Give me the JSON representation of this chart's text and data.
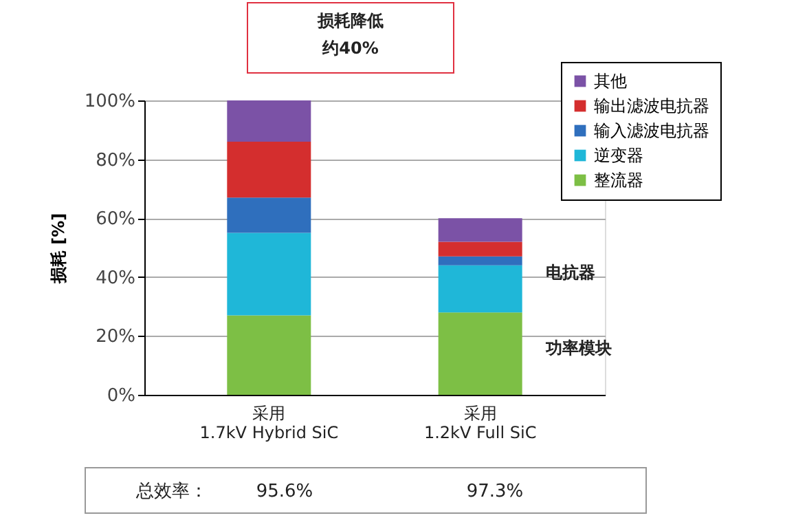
{
  "chart_data": {
    "type": "bar",
    "stacked": true,
    "categories": [
      "采用\n1.7kV Hybrid SiC",
      "采用\n1.2kV Full SiC"
    ],
    "series": [
      {
        "name": "整流器",
        "color": "#7dbf45",
        "values": [
          27,
          28
        ]
      },
      {
        "name": "逆变器",
        "color": "#1fb7d8",
        "values": [
          28,
          16
        ]
      },
      {
        "name": "输入滤波电抗器",
        "color": "#2f6fbd",
        "values": [
          12,
          3
        ]
      },
      {
        "name": "输出滤波电抗器",
        "color": "#d42e2e",
        "values": [
          19,
          5
        ]
      },
      {
        "name": "其他",
        "color": "#7b52a6",
        "values": [
          14,
          8
        ]
      }
    ],
    "ylabel": "损耗 [%]",
    "ylim": [
      0,
      100
    ],
    "yticks": [
      {
        "value": 0,
        "label": "0%"
      },
      {
        "value": 20,
        "label": "20%"
      },
      {
        "value": 40,
        "label": "40%"
      },
      {
        "value": 60,
        "label": "60%"
      },
      {
        "value": 80,
        "label": "80%"
      },
      {
        "value": 100,
        "label": "100%"
      }
    ],
    "grid": "y",
    "legend": "top right",
    "marker": "square",
    "annotations": [
      "损耗降低",
      "约40%",
      "电抗器",
      "功率模块",
      "总效率：",
      "95.6%",
      "97.3%"
    ]
  }
}
